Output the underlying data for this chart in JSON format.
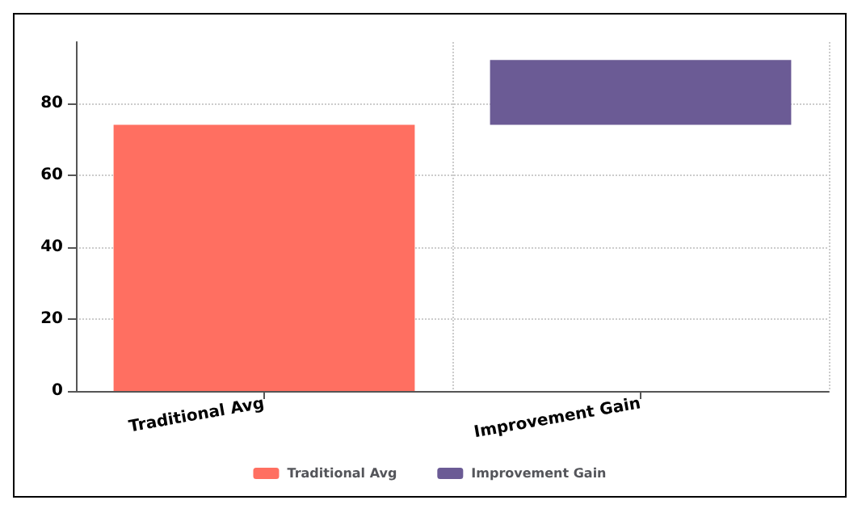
{
  "chart_data": {
    "type": "bar",
    "categories": [
      "Traditional Avg",
      "Improvement Gain"
    ],
    "series": [
      {
        "name": "Traditional Avg",
        "color": "#ff6f61",
        "values": [
          74,
          null
        ],
        "base": [
          0,
          null
        ]
      },
      {
        "name": "Improvement Gain",
        "color": "#6b5b95",
        "values": [
          null,
          18
        ],
        "base": [
          null,
          74
        ]
      }
    ],
    "ylim": [
      0,
      97
    ],
    "yticks": [
      0,
      20,
      40,
      60,
      80
    ],
    "grid": true,
    "legend": "bottom"
  }
}
